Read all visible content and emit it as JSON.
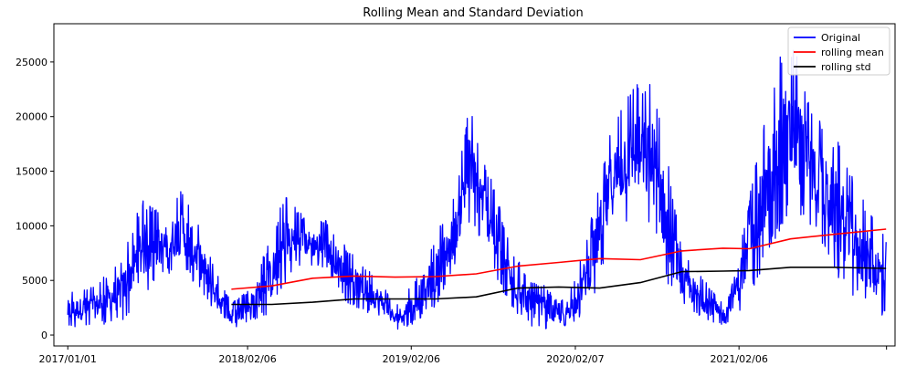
{
  "chart_data": {
    "type": "line",
    "title": "Rolling Mean and Standard Deviation",
    "xlabel": "",
    "ylabel": "",
    "x_tick_labels": [
      "2017/01/01",
      "2018/02/06",
      "2019/02/06",
      "2020/02/07",
      "2021/02/06"
    ],
    "x_tick_dates": [
      "2017-01-01",
      "2018-02-06",
      "2019-02-06",
      "2020-02-07",
      "2021-02-06"
    ],
    "x_range": [
      "2016-12-01",
      "2022-01-20"
    ],
    "y_ticks": [
      0,
      5000,
      10000,
      15000,
      20000,
      25000
    ],
    "ylim": [
      -1000,
      28500
    ],
    "grid": false,
    "legend": "top-right",
    "series": [
      {
        "name": "Original",
        "color": "#0000ff",
        "envelope": {
          "x": [
            "2017-01-01",
            "2017-03-01",
            "2017-05-01",
            "2017-06-15",
            "2017-08-01",
            "2017-09-15",
            "2017-11-01",
            "2017-12-01",
            "2018-01-01",
            "2018-02-06",
            "2018-04-01",
            "2018-05-01",
            "2018-06-15",
            "2018-08-01",
            "2018-09-15",
            "2018-11-01",
            "2018-12-01",
            "2019-01-01",
            "2019-02-06",
            "2019-04-01",
            "2019-05-15",
            "2019-06-15",
            "2019-07-15",
            "2019-08-15",
            "2019-09-15",
            "2019-11-01",
            "2019-12-01",
            "2020-01-01",
            "2020-02-07",
            "2020-03-15",
            "2020-05-01",
            "2020-06-15",
            "2020-08-01",
            "2020-09-01",
            "2020-10-01",
            "2020-11-01",
            "2020-12-01",
            "2021-01-01",
            "2021-02-06",
            "2021-04-01",
            "2021-05-15",
            "2021-06-15",
            "2021-07-15",
            "2021-08-15",
            "2021-09-15",
            "2021-11-01",
            "2021-12-01",
            "2021-12-31"
          ],
          "low": [
            600,
            800,
            1200,
            3500,
            5500,
            6000,
            3500,
            1500,
            300,
            1200,
            2000,
            4500,
            6500,
            6000,
            3000,
            2000,
            1500,
            400,
            900,
            2500,
            6000,
            10000,
            8500,
            5000,
            2500,
            800,
            500,
            500,
            1000,
            3000,
            9000,
            11000,
            9000,
            4000,
            2500,
            1800,
            1200,
            800,
            2000,
            6000,
            10000,
            11000,
            10000,
            8000,
            5000,
            3000,
            2000,
            1500
          ],
          "high": [
            4000,
            4500,
            7000,
            12500,
            11000,
            13500,
            9000,
            5500,
            3000,
            4000,
            9000,
            13200,
            10600,
            10500,
            8000,
            6000,
            5000,
            2500,
            4500,
            9000,
            13000,
            21200,
            16500,
            13000,
            8000,
            5000,
            4500,
            3000,
            5000,
            11000,
            20000,
            23500,
            23000,
            16000,
            8000,
            6000,
            4500,
            3000,
            8000,
            19000,
            27000,
            26000,
            21000,
            19000,
            18000,
            13000,
            11000,
            9000
          ]
        }
      },
      {
        "name": "rolling mean",
        "color": "#ff0000",
        "x": [
          "2018-01-01",
          "2018-04-01",
          "2018-07-01",
          "2018-10-01",
          "2019-01-01",
          "2019-04-01",
          "2019-07-01",
          "2019-10-01",
          "2020-01-01",
          "2020-04-01",
          "2020-07-01",
          "2020-10-01",
          "2021-01-01",
          "2021-03-01",
          "2021-06-01",
          "2021-09-01",
          "2021-12-31"
        ],
        "values": [
          4200,
          4500,
          5200,
          5400,
          5300,
          5350,
          5600,
          6300,
          6650,
          7000,
          6900,
          7700,
          7950,
          7900,
          8800,
          9200,
          9700
        ]
      },
      {
        "name": "rolling std",
        "color": "#000000",
        "x": [
          "2018-01-01",
          "2018-04-01",
          "2018-07-01",
          "2018-10-01",
          "2019-01-01",
          "2019-04-01",
          "2019-07-01",
          "2019-10-01",
          "2020-01-01",
          "2020-04-01",
          "2020-07-01",
          "2020-10-01",
          "2021-01-01",
          "2021-03-01",
          "2021-06-01",
          "2021-09-01",
          "2021-12-31"
        ],
        "values": [
          2800,
          2800,
          3000,
          3300,
          3300,
          3300,
          3500,
          4300,
          4400,
          4300,
          4800,
          5800,
          5850,
          5900,
          6200,
          6200,
          6100
        ]
      }
    ]
  }
}
